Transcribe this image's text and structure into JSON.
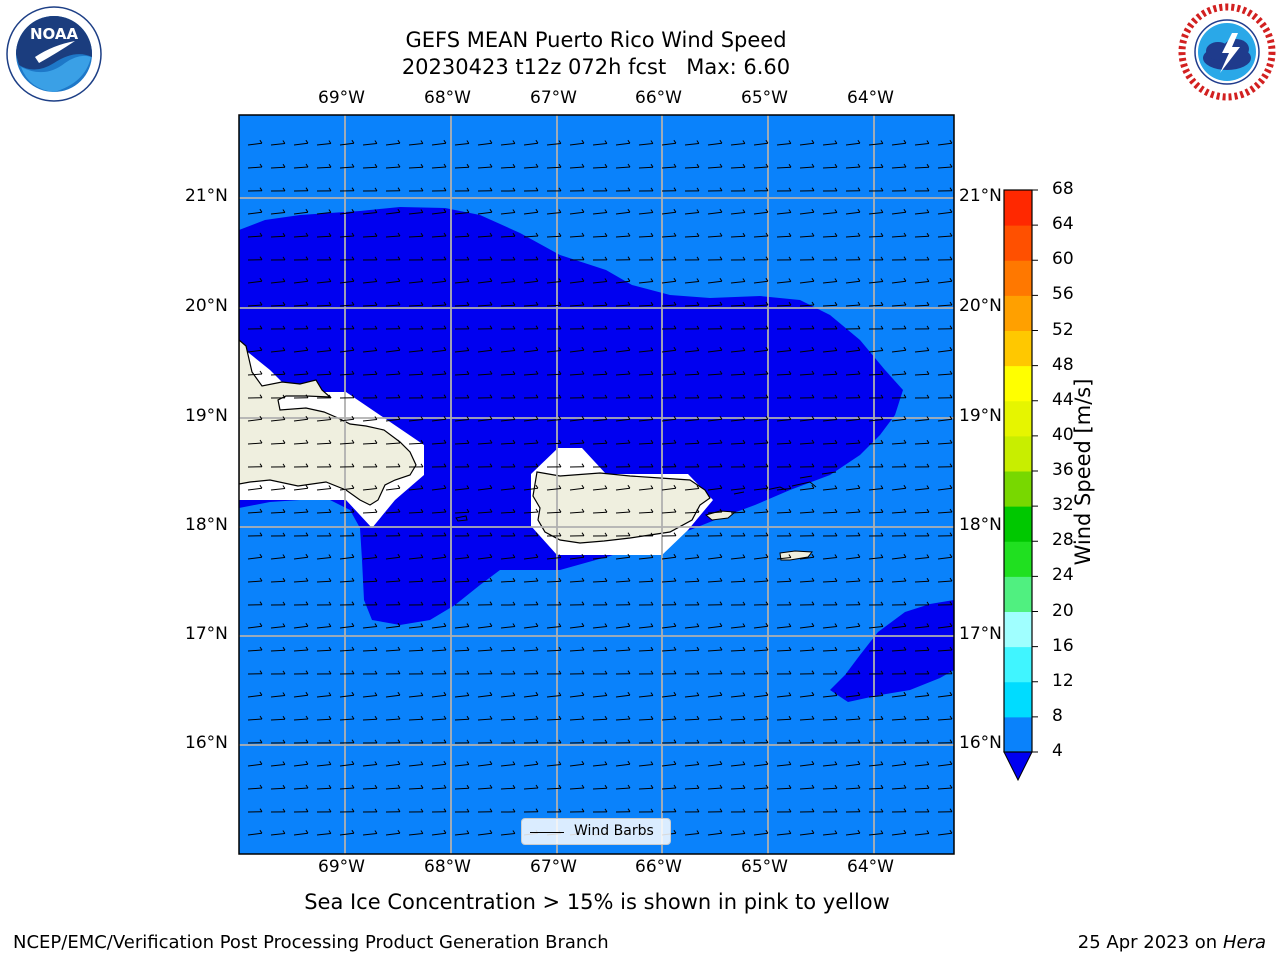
{
  "title": {
    "line1": "GEFS MEAN Puerto Rico Wind Speed",
    "line2": "20230423 t12z 072h fcst   Max: 6.60"
  },
  "logos": {
    "left": {
      "icon": "noaa-logo",
      "text": "NOAA"
    },
    "right": {
      "icon": "national-weather-service-logo"
    }
  },
  "map": {
    "lon_labels": [
      "69°W",
      "68°W",
      "67°W",
      "66°W",
      "65°W",
      "64°W"
    ],
    "lat_labels": [
      "21°N",
      "20°N",
      "19°N",
      "18°N",
      "17°N",
      "16°N"
    ],
    "colors": {
      "ocean_light": "#0a82fb",
      "ocean_dark": "#0000f0",
      "land": "#efefdf",
      "grid": "#b0b0b0"
    },
    "legend_label": "Wind Barbs"
  },
  "colorbar": {
    "ticks": [
      "68",
      "64",
      "60",
      "56",
      "52",
      "48",
      "44",
      "40",
      "36",
      "32",
      "28",
      "24",
      "20",
      "16",
      "12",
      "8",
      "4"
    ],
    "colors": [
      "#0000f0",
      "#0a82fb",
      "#00dcff",
      "#40f5ff",
      "#a0ffff",
      "#50f080",
      "#20e020",
      "#00c800",
      "#78d800",
      "#c8ee00",
      "#e6f500",
      "#ffff00",
      "#ffc800",
      "#ffa000",
      "#ff7800",
      "#ff5000",
      "#ff2800",
      "#ff0000"
    ],
    "label": "Wind Speed [m/s]"
  },
  "subtitle": "Sea Ice Concentration > 15% is shown in pink to yellow",
  "footer": {
    "left": "NCEP/EMC/Verification Post Processing Product Generation Branch",
    "right_date": "25 Apr 2023 on ",
    "right_host": "Hera"
  }
}
